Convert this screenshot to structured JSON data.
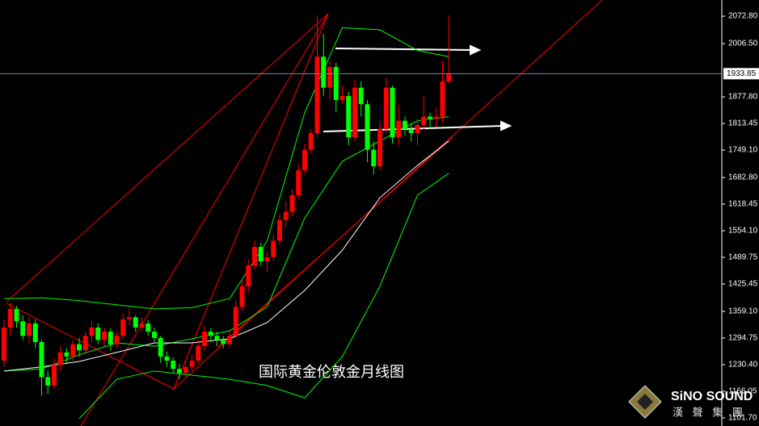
{
  "chart_data": {
    "type": "candlestick",
    "title": "国际黄金伦敦金月线图",
    "logo": {
      "name": "SiNO SOUND",
      "sub": "漢 聲 集 團"
    },
    "up_color": "#ff0000",
    "down_color": "#00ff00",
    "ylim": [
      1082,
      2112
    ],
    "yticks": [
      {
        "value": 2072.8,
        "label": "2072.80"
      },
      {
        "value": 2006.5,
        "label": "2006.50"
      },
      {
        "value": 1877.8,
        "label": "1877.80"
      },
      1813.45,
      {
        "value": 1749.1,
        "label": "1749.10"
      },
      {
        "value": 1682.8,
        "label": "1682.80"
      },
      1618.45,
      {
        "value": 1554.1,
        "label": "1554.10"
      },
      1489.75,
      1425.45,
      {
        "value": 1359.1,
        "label": "1359.10"
      },
      1294.75,
      {
        "value": 1230.4,
        "label": "1230.40"
      },
      1166.05,
      {
        "value": 1101.7,
        "label": "1101.70"
      }
    ],
    "current_price": 1933.85,
    "candles": [
      [
        1240,
        1340,
        1225,
        1320
      ],
      [
        1320,
        1380,
        1300,
        1365
      ],
      [
        1365,
        1372,
        1320,
        1335
      ],
      [
        1335,
        1350,
        1290,
        1300
      ],
      [
        1300,
        1345,
        1280,
        1330
      ],
      [
        1330,
        1340,
        1270,
        1285
      ],
      [
        1285,
        1290,
        1155,
        1200
      ],
      [
        1200,
        1215,
        1160,
        1180
      ],
      [
        1180,
        1245,
        1170,
        1230
      ],
      [
        1230,
        1275,
        1215,
        1260
      ],
      [
        1260,
        1270,
        1235,
        1250
      ],
      [
        1250,
        1290,
        1240,
        1280
      ],
      [
        1280,
        1295,
        1250,
        1265
      ],
      [
        1265,
        1310,
        1255,
        1300
      ],
      [
        1300,
        1335,
        1285,
        1320
      ],
      [
        1320,
        1330,
        1280,
        1290
      ],
      [
        1290,
        1320,
        1275,
        1310
      ],
      [
        1310,
        1318,
        1265,
        1280
      ],
      [
        1280,
        1310,
        1270,
        1300
      ],
      [
        1300,
        1355,
        1290,
        1340
      ],
      [
        1340,
        1365,
        1325,
        1345
      ],
      [
        1345,
        1350,
        1310,
        1320
      ],
      [
        1320,
        1345,
        1310,
        1330
      ],
      [
        1330,
        1340,
        1300,
        1310
      ],
      [
        1310,
        1320,
        1285,
        1295
      ],
      [
        1295,
        1300,
        1235,
        1250
      ],
      [
        1250,
        1262,
        1225,
        1240
      ],
      [
        1240,
        1248,
        1210,
        1220
      ],
      [
        1220,
        1232,
        1195,
        1210
      ],
      [
        1210,
        1240,
        1200,
        1225
      ],
      [
        1225,
        1255,
        1215,
        1240
      ],
      [
        1240,
        1290,
        1232,
        1275
      ],
      [
        1275,
        1325,
        1265,
        1310
      ],
      [
        1310,
        1318,
        1285,
        1300
      ],
      [
        1300,
        1310,
        1275,
        1290
      ],
      [
        1290,
        1300,
        1270,
        1280
      ],
      [
        1280,
        1315,
        1272,
        1300
      ],
      [
        1300,
        1385,
        1295,
        1370
      ],
      [
        1370,
        1435,
        1360,
        1420
      ],
      [
        1420,
        1485,
        1405,
        1470
      ],
      [
        1470,
        1530,
        1460,
        1515
      ],
      [
        1515,
        1525,
        1470,
        1480
      ],
      [
        1480,
        1505,
        1455,
        1490
      ],
      [
        1490,
        1545,
        1480,
        1530
      ],
      [
        1530,
        1595,
        1520,
        1580
      ],
      [
        1580,
        1625,
        1560,
        1600
      ],
      [
        1600,
        1655,
        1590,
        1640
      ],
      [
        1640,
        1715,
        1630,
        1700
      ],
      [
        1700,
        1765,
        1690,
        1750
      ],
      [
        1750,
        1800,
        1740,
        1790
      ],
      [
        1790,
        2075,
        1780,
        1975
      ],
      [
        1975,
        2030,
        1880,
        1900
      ],
      [
        1900,
        1965,
        1870,
        1950
      ],
      [
        1950,
        1960,
        1840,
        1870
      ],
      [
        1870,
        1905,
        1860,
        1880
      ],
      [
        1880,
        1890,
        1760,
        1780
      ],
      [
        1780,
        1920,
        1770,
        1900
      ],
      [
        1900,
        1915,
        1830,
        1860
      ],
      [
        1860,
        1870,
        1720,
        1750
      ],
      [
        1750,
        1770,
        1690,
        1710
      ],
      [
        1710,
        1820,
        1700,
        1800
      ],
      [
        1800,
        1925,
        1790,
        1900
      ],
      [
        1900,
        1905,
        1765,
        1780
      ],
      [
        1780,
        1860,
        1760,
        1820
      ],
      [
        1820,
        1830,
        1785,
        1800
      ],
      [
        1800,
        1815,
        1770,
        1790
      ],
      [
        1790,
        1825,
        1760,
        1810
      ],
      [
        1810,
        1880,
        1800,
        1830
      ],
      [
        1830,
        1840,
        1800,
        1825
      ],
      [
        1825,
        1850,
        1805,
        1830
      ],
      [
        1830,
        1965,
        1815,
        1915
      ],
      [
        1915,
        2075,
        1910,
        1933.85
      ]
    ],
    "series": [
      {
        "color": "#00ff00",
        "x": [
          0,
          6,
          12,
          18,
          24,
          30,
          36,
          42,
          48,
          54,
          60,
          66,
          71
        ],
        "values": [
          1390,
          1392,
          1385,
          1375,
          1365,
          1368,
          1390,
          1530,
          1840,
          2045,
          2040,
          1990,
          1975
        ]
      },
      {
        "color": "#00ff00",
        "x": [
          0,
          6,
          12,
          18,
          24,
          30,
          36,
          42,
          48,
          54,
          60,
          66,
          71
        ],
        "values": [
          1215,
          1220,
          1254,
          1283,
          1275,
          1293,
          1312,
          1370,
          1585,
          1722,
          1771,
          1820,
          1830
        ]
      },
      {
        "color": "#00ff00",
        "x": [
          0,
          6,
          12,
          18,
          24,
          30,
          36,
          42,
          48,
          54,
          60,
          66,
          71
        ],
        "values": [
          null,
          null,
          1100,
          1195,
          1215,
          1205,
          1195,
          1180,
          1150,
          1250,
          1420,
          1640,
          1693
        ]
      },
      {
        "color": "#ffffff",
        "x": [
          0,
          6,
          12,
          18,
          24,
          30,
          36,
          42,
          48,
          54,
          60,
          66,
          71
        ],
        "values": [
          1215,
          1225,
          1238,
          1260,
          1283,
          1283,
          1293,
          1332,
          1410,
          1507,
          1634,
          1712,
          1771
        ]
      }
    ]
  }
}
